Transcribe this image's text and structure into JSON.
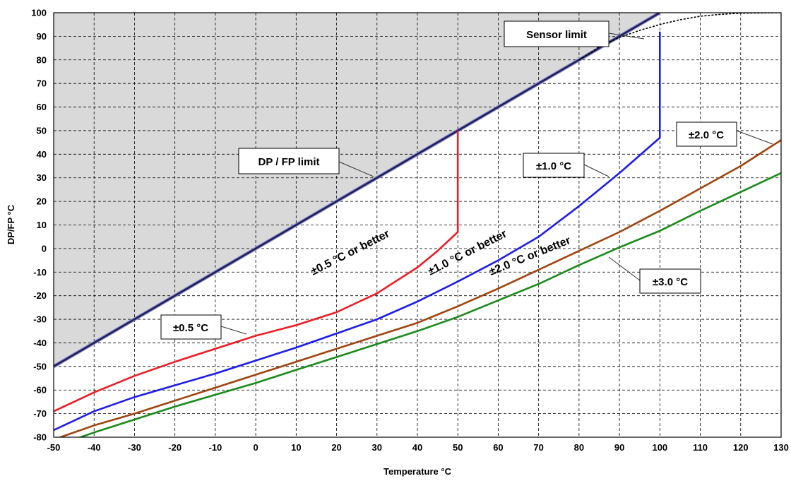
{
  "chart_data": {
    "type": "line",
    "xlabel": "Temperature °C",
    "ylabel": "DP/FP °C",
    "xlim": [
      -50,
      130
    ],
    "ylim": [
      -80,
      100
    ],
    "x_ticks": [
      -50,
      -40,
      -30,
      -20,
      -10,
      0,
      10,
      20,
      30,
      40,
      50,
      60,
      70,
      80,
      90,
      100,
      110,
      120,
      130
    ],
    "y_ticks": [
      -80,
      -70,
      -60,
      -50,
      -40,
      -30,
      -20,
      -10,
      0,
      10,
      20,
      30,
      40,
      50,
      60,
      70,
      80,
      90,
      100
    ],
    "grid": true,
    "grid_style": "dashed",
    "shaded_region": {
      "description": "area above DP = T",
      "color": "#d9d9d9"
    },
    "series": [
      {
        "label_ref": "dp_fp_limit",
        "color": "#1f1f5f",
        "points": [
          [
            -50,
            -50
          ],
          [
            100,
            100
          ]
        ]
      },
      {
        "label_ref": "sensor_limit",
        "color": "#000000",
        "dashed": true,
        "points": [
          [
            80,
            80
          ],
          [
            85,
            85.5
          ],
          [
            90,
            89.5
          ],
          [
            95,
            92.5
          ],
          [
            100,
            95
          ],
          [
            105,
            97
          ],
          [
            110,
            98.5
          ],
          [
            115,
            99.3
          ],
          [
            120,
            99.8
          ],
          [
            130,
            100
          ]
        ]
      },
      {
        "label_ref": "pm_0_5",
        "color": "#ee1c24",
        "points": [
          [
            -50,
            -69
          ],
          [
            -40,
            -61
          ],
          [
            -30,
            -54
          ],
          [
            -20,
            -48
          ],
          [
            -10,
            -42.5
          ],
          [
            0,
            -37
          ],
          [
            10,
            -32.5
          ],
          [
            20,
            -27
          ],
          [
            30,
            -19
          ],
          [
            40,
            -8
          ],
          [
            45,
            -1
          ],
          [
            50,
            7
          ],
          [
            50,
            50
          ]
        ]
      },
      {
        "label_ref": "pm_1_0",
        "color": "#1c1cee",
        "points": [
          [
            -50,
            -77
          ],
          [
            -40,
            -69
          ],
          [
            -30,
            -63
          ],
          [
            -20,
            -58
          ],
          [
            -10,
            -53
          ],
          [
            0,
            -47.5
          ],
          [
            10,
            -42
          ],
          [
            20,
            -36
          ],
          [
            30,
            -30
          ],
          [
            40,
            -22.5
          ],
          [
            50,
            -14
          ],
          [
            60,
            -5
          ],
          [
            70,
            5
          ],
          [
            80,
            18
          ],
          [
            90,
            32
          ],
          [
            100,
            47
          ],
          [
            100,
            92
          ]
        ]
      },
      {
        "label_ref": "pm_2_0",
        "color": "#a0440f",
        "points": [
          [
            -50,
            -81
          ],
          [
            -40,
            -75
          ],
          [
            -30,
            -70
          ],
          [
            -20,
            -64.5
          ],
          [
            -10,
            -59
          ],
          [
            0,
            -53.5
          ],
          [
            10,
            -48
          ],
          [
            20,
            -42.5
          ],
          [
            30,
            -37
          ],
          [
            40,
            -31.5
          ],
          [
            50,
            -24.5
          ],
          [
            60,
            -17
          ],
          [
            70,
            -9
          ],
          [
            80,
            -1
          ],
          [
            90,
            7
          ],
          [
            100,
            16
          ],
          [
            110,
            25.5
          ],
          [
            120,
            35
          ],
          [
            130,
            46
          ]
        ]
      },
      {
        "label_ref": "pm_3_0",
        "color": "#1a8a1a",
        "points": [
          [
            -50,
            -84
          ],
          [
            -40,
            -78
          ],
          [
            -30,
            -72.5
          ],
          [
            -20,
            -67
          ],
          [
            -10,
            -62
          ],
          [
            0,
            -57
          ],
          [
            10,
            -51.5
          ],
          [
            20,
            -46
          ],
          [
            30,
            -40.5
          ],
          [
            40,
            -35
          ],
          [
            50,
            -29
          ],
          [
            60,
            -22
          ],
          [
            70,
            -15
          ],
          [
            80,
            -7
          ],
          [
            90,
            0.5
          ],
          [
            100,
            7.5
          ],
          [
            110,
            16
          ],
          [
            120,
            24
          ],
          [
            130,
            32
          ]
        ]
      }
    ],
    "annotations": {
      "dp_fp_limit": "DP / FP limit",
      "sensor_limit": "Sensor limit",
      "pm_0_5": "±0.5 °C",
      "pm_1_0": "±1.0 °C",
      "pm_2_0": "±2.0 °C",
      "pm_3_0": "±3.0 °C",
      "zone_0_5": "±0.5 °C or better",
      "zone_1_0": "±1.0 °C or better",
      "zone_2_0": "±2.0 °C or better"
    }
  }
}
